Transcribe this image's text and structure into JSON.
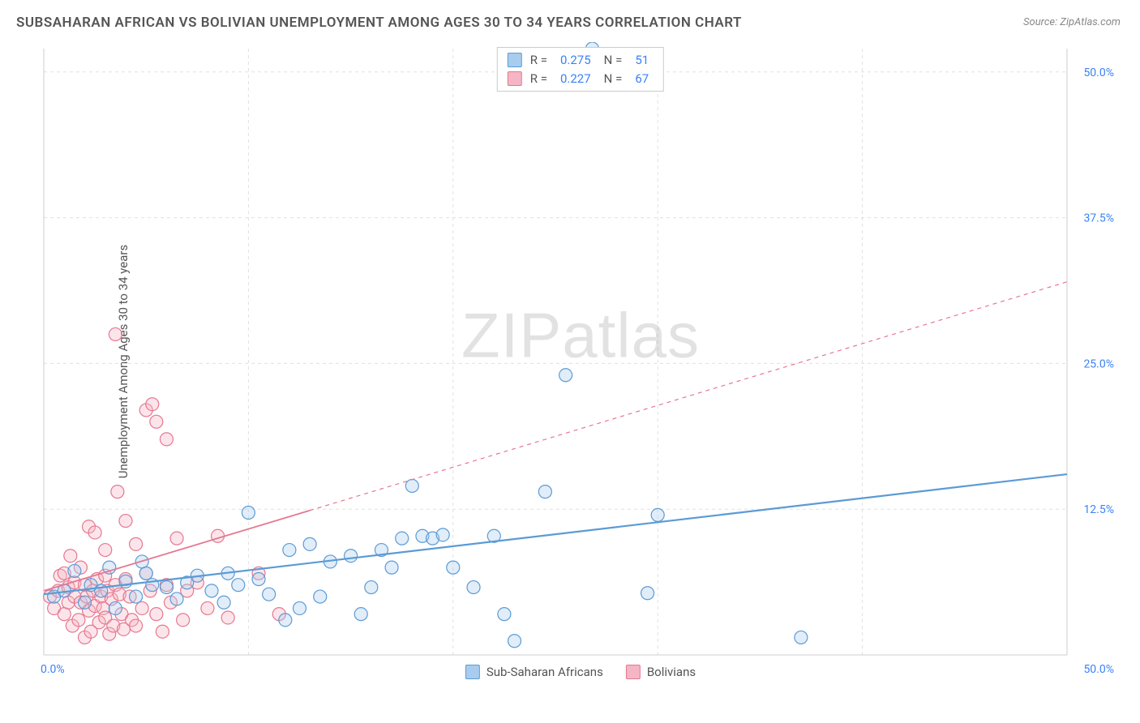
{
  "title": "SUBSAHARAN AFRICAN VS BOLIVIAN UNEMPLOYMENT AMONG AGES 30 TO 34 YEARS CORRELATION CHART",
  "source": "Source: ZipAtlas.com",
  "ylabel": "Unemployment Among Ages 30 to 34 years",
  "watermark": {
    "bold": "ZIP",
    "light": "atlas"
  },
  "chart": {
    "type": "scatter",
    "xlim": [
      0,
      50
    ],
    "ylim": [
      0,
      52
    ],
    "xticks": [
      0,
      50
    ],
    "xtick_labels": [
      "0.0%",
      "50.0%"
    ],
    "yticks": [
      12.5,
      25,
      37.5,
      50
    ],
    "ytick_labels": [
      "12.5%",
      "25.0%",
      "37.5%",
      "50.0%"
    ],
    "grid_color": "#e0e0e0",
    "grid_dash": "4,4",
    "axis_color": "#cccccc",
    "tick_color": "#3b82f6",
    "background_color": "#ffffff",
    "marker_radius": 8,
    "marker_stroke_width": 1.2,
    "marker_fill_opacity": 0.35,
    "series": [
      {
        "name": "Sub-Saharan Africans",
        "color_stroke": "#5b9bd5",
        "color_fill": "#a8ccee",
        "R": "0.275",
        "N": "51",
        "trend": {
          "x1": 0,
          "y1": 5.2,
          "x2": 50,
          "y2": 15.5,
          "dash_from_x": null,
          "width": 2.2
        },
        "points": [
          [
            0.5,
            5.0
          ],
          [
            1.0,
            5.5
          ],
          [
            1.5,
            7.2
          ],
          [
            2.0,
            4.5
          ],
          [
            2.3,
            6.0
          ],
          [
            2.8,
            5.5
          ],
          [
            3.2,
            7.5
          ],
          [
            3.5,
            4.0
          ],
          [
            4.0,
            6.3
          ],
          [
            4.5,
            5.0
          ],
          [
            5.0,
            7.0
          ],
          [
            5.3,
            6.0
          ],
          [
            6.0,
            5.8
          ],
          [
            6.5,
            4.8
          ],
          [
            7.0,
            6.2
          ],
          [
            7.5,
            6.8
          ],
          [
            8.2,
            5.5
          ],
          [
            8.8,
            4.5
          ],
          [
            9.5,
            6.0
          ],
          [
            10.0,
            12.2
          ],
          [
            10.5,
            6.5
          ],
          [
            11.0,
            5.2
          ],
          [
            11.8,
            3.0
          ],
          [
            12.0,
            9.0
          ],
          [
            12.5,
            4.0
          ],
          [
            13.0,
            9.5
          ],
          [
            13.5,
            5.0
          ],
          [
            14.0,
            8.0
          ],
          [
            15.0,
            8.5
          ],
          [
            15.5,
            3.5
          ],
          [
            16.0,
            5.8
          ],
          [
            16.5,
            9.0
          ],
          [
            17.0,
            7.5
          ],
          [
            17.5,
            10.0
          ],
          [
            18.0,
            14.5
          ],
          [
            18.5,
            10.2
          ],
          [
            19.0,
            10.0
          ],
          [
            19.5,
            10.3
          ],
          [
            20.0,
            7.5
          ],
          [
            21.0,
            5.8
          ],
          [
            22.0,
            10.2
          ],
          [
            22.5,
            3.5
          ],
          [
            23.0,
            1.2
          ],
          [
            24.5,
            14.0
          ],
          [
            25.5,
            24.0
          ],
          [
            26.8,
            52.0
          ],
          [
            29.5,
            5.3
          ],
          [
            30.0,
            12.0
          ],
          [
            37.0,
            1.5
          ],
          [
            4.8,
            8.0
          ],
          [
            9.0,
            7.0
          ]
        ]
      },
      {
        "name": "Bolivians",
        "color_stroke": "#e57890",
        "color_fill": "#f5b5c4",
        "R": "0.227",
        "N": "67",
        "trend": {
          "x1": 0,
          "y1": 5.5,
          "x2": 50,
          "y2": 32.0,
          "dash_from_x": 13,
          "width": 1.8
        },
        "points": [
          [
            0.3,
            5.0
          ],
          [
            0.5,
            4.0
          ],
          [
            0.7,
            5.5
          ],
          [
            0.8,
            6.8
          ],
          [
            1.0,
            3.5
          ],
          [
            1.0,
            7.0
          ],
          [
            1.2,
            4.5
          ],
          [
            1.2,
            5.8
          ],
          [
            1.3,
            8.5
          ],
          [
            1.4,
            2.5
          ],
          [
            1.5,
            5.0
          ],
          [
            1.5,
            6.2
          ],
          [
            1.7,
            3.0
          ],
          [
            1.8,
            4.5
          ],
          [
            1.8,
            7.5
          ],
          [
            2.0,
            1.5
          ],
          [
            2.0,
            6.0
          ],
          [
            2.1,
            5.0
          ],
          [
            2.2,
            11.0
          ],
          [
            2.2,
            3.8
          ],
          [
            2.3,
            2.0
          ],
          [
            2.4,
            5.5
          ],
          [
            2.5,
            4.2
          ],
          [
            2.5,
            10.5
          ],
          [
            2.6,
            6.5
          ],
          [
            2.7,
            2.8
          ],
          [
            2.8,
            5.0
          ],
          [
            2.9,
            4.0
          ],
          [
            3.0,
            6.8
          ],
          [
            3.0,
            3.2
          ],
          [
            3.0,
            9.0
          ],
          [
            3.1,
            5.5
          ],
          [
            3.2,
            1.8
          ],
          [
            3.3,
            4.8
          ],
          [
            3.4,
            2.5
          ],
          [
            3.5,
            6.0
          ],
          [
            3.5,
            27.5
          ],
          [
            3.6,
            14.0
          ],
          [
            3.7,
            5.2
          ],
          [
            3.8,
            3.5
          ],
          [
            3.9,
            2.2
          ],
          [
            4.0,
            11.5
          ],
          [
            4.0,
            6.5
          ],
          [
            4.2,
            5.0
          ],
          [
            4.3,
            3.0
          ],
          [
            4.5,
            2.5
          ],
          [
            4.5,
            9.5
          ],
          [
            4.8,
            4.0
          ],
          [
            5.0,
            21.0
          ],
          [
            5.0,
            7.0
          ],
          [
            5.2,
            5.5
          ],
          [
            5.3,
            21.5
          ],
          [
            5.5,
            3.5
          ],
          [
            5.5,
            20.0
          ],
          [
            5.8,
            2.0
          ],
          [
            6.0,
            18.5
          ],
          [
            6.0,
            6.0
          ],
          [
            6.2,
            4.5
          ],
          [
            6.5,
            10.0
          ],
          [
            6.8,
            3.0
          ],
          [
            7.0,
            5.5
          ],
          [
            7.5,
            6.2
          ],
          [
            8.0,
            4.0
          ],
          [
            8.5,
            10.2
          ],
          [
            9.0,
            3.2
          ],
          [
            10.5,
            7.0
          ],
          [
            11.5,
            3.5
          ]
        ]
      }
    ],
    "legend_bottom": [
      {
        "label": "Sub-Saharan Africans",
        "stroke": "#5b9bd5",
        "fill": "#a8ccee"
      },
      {
        "label": "Bolivians",
        "stroke": "#e57890",
        "fill": "#f5b5c4"
      }
    ]
  }
}
